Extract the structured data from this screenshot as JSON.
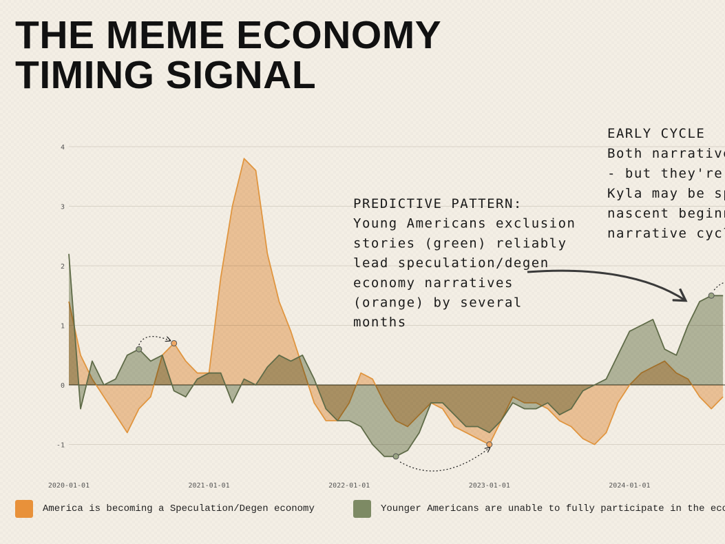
{
  "title_lines": [
    "THE MEME ECONOMY",
    "TIMING SIGNAL"
  ],
  "chart_data": {
    "type": "area",
    "title": "THE MEME ECONOMY TIMING SIGNAL",
    "xlabel": "",
    "ylabel": "",
    "x_ticks": [
      "2020-01-01",
      "2021-01-01",
      "2022-01-01",
      "2023-01-01",
      "2024-01-01"
    ],
    "y_ticks": [
      -1,
      0,
      1,
      2,
      3,
      4
    ],
    "ylim": [
      -1.5,
      4.3
    ],
    "xlim": [
      "2020-01-01",
      "2024-09-01"
    ],
    "grid": "horizontal",
    "legend_position": "bottom",
    "x": [
      "2020-01",
      "2020-02",
      "2020-03",
      "2020-04",
      "2020-05",
      "2020-06",
      "2020-07",
      "2020-08",
      "2020-09",
      "2020-10",
      "2020-11",
      "2020-12",
      "2021-01",
      "2021-02",
      "2021-03",
      "2021-04",
      "2021-05",
      "2021-06",
      "2021-07",
      "2021-08",
      "2021-09",
      "2021-10",
      "2021-11",
      "2021-12",
      "2022-01",
      "2022-02",
      "2022-03",
      "2022-04",
      "2022-05",
      "2022-06",
      "2022-07",
      "2022-08",
      "2022-09",
      "2022-10",
      "2022-11",
      "2022-12",
      "2023-01",
      "2023-02",
      "2023-03",
      "2023-04",
      "2023-05",
      "2023-06",
      "2023-07",
      "2023-08",
      "2023-09",
      "2023-10",
      "2023-11",
      "2023-12",
      "2024-01",
      "2024-02",
      "2024-03",
      "2024-04",
      "2024-05",
      "2024-06",
      "2024-07",
      "2024-08",
      "2024-09"
    ],
    "series": [
      {
        "name": "America is becoming a Speculation/Degen economy",
        "color": "#e8913a",
        "values": [
          1.4,
          0.5,
          0.1,
          -0.2,
          -0.5,
          -0.8,
          -0.4,
          -0.2,
          0.5,
          0.7,
          0.4,
          0.2,
          0.2,
          1.8,
          3.0,
          3.8,
          3.6,
          2.2,
          1.4,
          0.9,
          0.3,
          -0.3,
          -0.6,
          -0.6,
          -0.3,
          0.2,
          0.1,
          -0.3,
          -0.6,
          -0.7,
          -0.5,
          -0.3,
          -0.4,
          -0.7,
          -0.8,
          -0.9,
          -1.0,
          -0.6,
          -0.2,
          -0.3,
          -0.3,
          -0.4,
          -0.6,
          -0.7,
          -0.9,
          -1.0,
          -0.8,
          -0.3,
          0.0,
          0.2,
          0.3,
          0.4,
          0.2,
          0.1,
          -0.2,
          -0.4,
          -0.2
        ]
      },
      {
        "name": "Younger Americans are unable to fully participate in the econ",
        "color": "#7d8a64",
        "values": [
          2.2,
          -0.4,
          0.4,
          0.0,
          0.1,
          0.5,
          0.6,
          0.4,
          0.5,
          -0.1,
          -0.2,
          0.1,
          0.2,
          0.2,
          -0.3,
          0.1,
          0.0,
          0.3,
          0.5,
          0.4,
          0.5,
          0.1,
          -0.4,
          -0.6,
          -0.6,
          -0.7,
          -1.0,
          -1.2,
          -1.2,
          -1.1,
          -0.8,
          -0.3,
          -0.3,
          -0.5,
          -0.7,
          -0.7,
          -0.8,
          -0.6,
          -0.3,
          -0.4,
          -0.4,
          -0.3,
          -0.5,
          -0.4,
          -0.1,
          0.0,
          0.1,
          0.5,
          0.9,
          1.0,
          1.1,
          0.6,
          0.5,
          1.0,
          1.4,
          1.5,
          1.5
        ]
      }
    ],
    "annotations": [
      {
        "lines": [
          "PREDICTIVE PATTERN:",
          "Young Americans exclusion",
          "stories (green) reliably",
          "lead speculation/degen",
          "economy narratives",
          "(orange) by several",
          "months"
        ]
      },
      {
        "lines": [
          "EARLY CYCLE",
          "Both narratives",
          "- but they're",
          "Kyla may be sp",
          "nascent beginnin",
          "narrative cycle"
        ]
      }
    ]
  }
}
